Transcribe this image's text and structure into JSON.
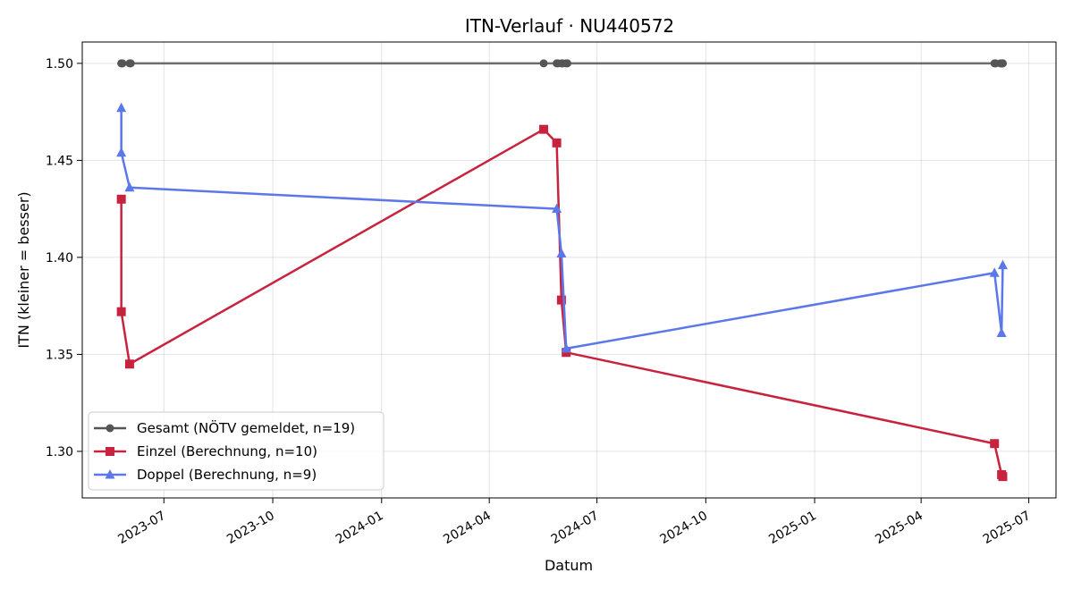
{
  "chart_data": {
    "type": "line",
    "title": "ITN-Verlauf · NU440572",
    "xlabel": "Datum",
    "ylabel": "ITN  (kleiner = besser)",
    "ylim": [
      1.276,
      1.511
    ],
    "xlim": [
      "2023-04-23",
      "2025-07-24"
    ],
    "x_ticks": [
      "2023-07-01",
      "2023-10-01",
      "2024-01-01",
      "2024-04-01",
      "2024-07-01",
      "2024-10-01",
      "2025-01-01",
      "2025-04-01",
      "2025-07-01"
    ],
    "x_tick_labels": [
      "2023-07",
      "2023-10",
      "2024-01",
      "2024-04",
      "2024-07",
      "2024-10",
      "2025-01",
      "2025-04",
      "2025-07"
    ],
    "y_ticks": [
      1.3,
      1.35,
      1.4,
      1.45,
      1.5
    ],
    "y_tick_labels": [
      "1.30",
      "1.35",
      "1.40",
      "1.45",
      "1.50"
    ],
    "grid": true,
    "legend_position": "lower-left",
    "series": [
      {
        "name": "Gesamt (NÖTV gemeldet, n=19)",
        "color": "#555555",
        "marker": "circle",
        "points": [
          {
            "x": "2023-05-26",
            "y": 1.5
          },
          {
            "x": "2023-05-26",
            "y": 1.5
          },
          {
            "x": "2023-05-27",
            "y": 1.5
          },
          {
            "x": "2023-06-02",
            "y": 1.5
          },
          {
            "x": "2023-06-03",
            "y": 1.5
          },
          {
            "x": "2024-05-17",
            "y": 1.5
          },
          {
            "x": "2024-05-28",
            "y": 1.5
          },
          {
            "x": "2024-05-29",
            "y": 1.5
          },
          {
            "x": "2024-06-01",
            "y": 1.5
          },
          {
            "x": "2024-06-02",
            "y": 1.5
          },
          {
            "x": "2024-06-05",
            "y": 1.5
          },
          {
            "x": "2024-06-06",
            "y": 1.5
          },
          {
            "x": "2025-06-02",
            "y": 1.5
          },
          {
            "x": "2025-06-03",
            "y": 1.5
          },
          {
            "x": "2025-06-07",
            "y": 1.5
          },
          {
            "x": "2025-06-08",
            "y": 1.5
          },
          {
            "x": "2025-06-08",
            "y": 1.5
          },
          {
            "x": "2025-06-09",
            "y": 1.5
          },
          {
            "x": "2025-06-09",
            "y": 1.5
          }
        ]
      },
      {
        "name": "Einzel (Berechnung, n=10)",
        "color": "#c8233e",
        "marker": "square",
        "points": [
          {
            "x": "2023-05-26",
            "y": 1.43
          },
          {
            "x": "2023-05-26",
            "y": 1.372
          },
          {
            "x": "2023-06-02",
            "y": 1.345
          },
          {
            "x": "2024-05-17",
            "y": 1.466
          },
          {
            "x": "2024-05-28",
            "y": 1.459
          },
          {
            "x": "2024-06-01",
            "y": 1.378
          },
          {
            "x": "2024-06-05",
            "y": 1.351
          },
          {
            "x": "2025-06-02",
            "y": 1.304
          },
          {
            "x": "2025-06-08",
            "y": 1.288
          },
          {
            "x": "2025-06-09",
            "y": 1.287
          }
        ]
      },
      {
        "name": "Doppel (Berechnung, n=9)",
        "color": "#5b78ea",
        "marker": "triangle",
        "points": [
          {
            "x": "2023-05-26",
            "y": 1.477
          },
          {
            "x": "2023-05-26",
            "y": 1.454
          },
          {
            "x": "2023-06-02",
            "y": 1.436
          },
          {
            "x": "2024-05-28",
            "y": 1.425
          },
          {
            "x": "2024-06-01",
            "y": 1.402
          },
          {
            "x": "2024-06-05",
            "y": 1.353
          },
          {
            "x": "2025-06-02",
            "y": 1.392
          },
          {
            "x": "2025-06-08",
            "y": 1.361
          },
          {
            "x": "2025-06-09",
            "y": 1.396
          }
        ]
      }
    ]
  }
}
